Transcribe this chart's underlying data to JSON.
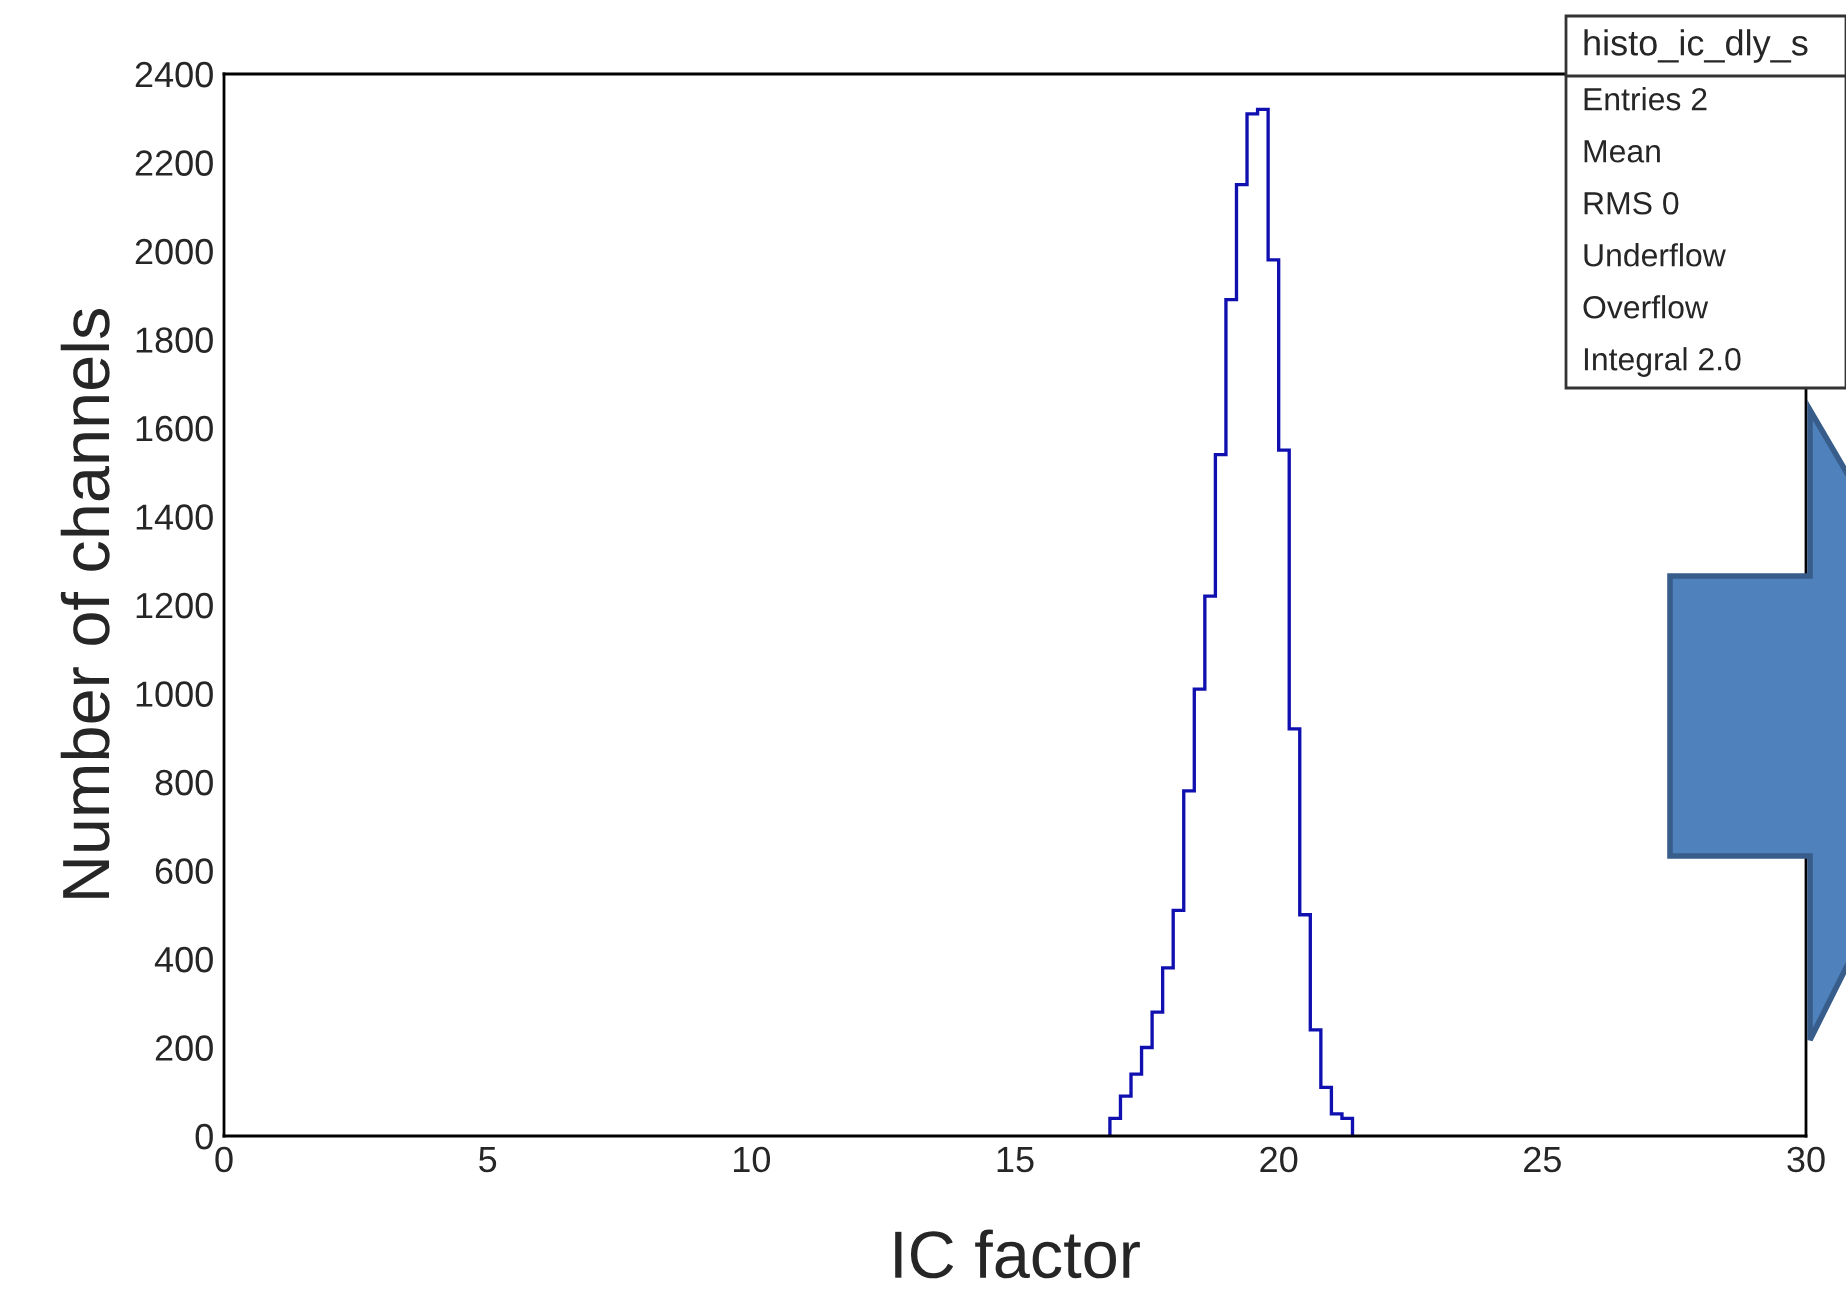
{
  "chart_data": {
    "type": "histogram",
    "xlabel": "IC factor",
    "ylabel": "Number of channels",
    "bins": [
      16.8,
      17.0,
      17.2,
      17.4,
      17.6,
      17.8,
      18.0,
      18.2,
      18.4,
      18.6,
      18.8,
      19.0,
      19.2,
      19.4,
      19.6,
      19.8,
      20.0,
      20.2,
      20.4,
      20.6,
      20.8,
      21.0,
      21.2,
      21.4
    ],
    "values": [
      40,
      90,
      140,
      200,
      280,
      380,
      510,
      780,
      1010,
      1220,
      1540,
      1890,
      2150,
      2310,
      2320,
      1980,
      1550,
      920,
      500,
      240,
      110,
      50,
      40
    ],
    "color": "#1010b0",
    "xlim": [
      0,
      30
    ],
    "xticks": [
      0,
      5,
      10,
      15,
      20,
      25,
      30
    ],
    "ylim": [
      0,
      2400
    ],
    "yticks": [
      0,
      200,
      400,
      600,
      800,
      1000,
      1200,
      1400,
      1600,
      1800,
      2000,
      2200,
      2400
    ],
    "grid": false,
    "annotations": [
      "histo_ic_dly_s",
      "Entries 2",
      "Mean",
      "RMS 0",
      "Underflow",
      "Overflow",
      "Integral 2.0"
    ]
  }
}
